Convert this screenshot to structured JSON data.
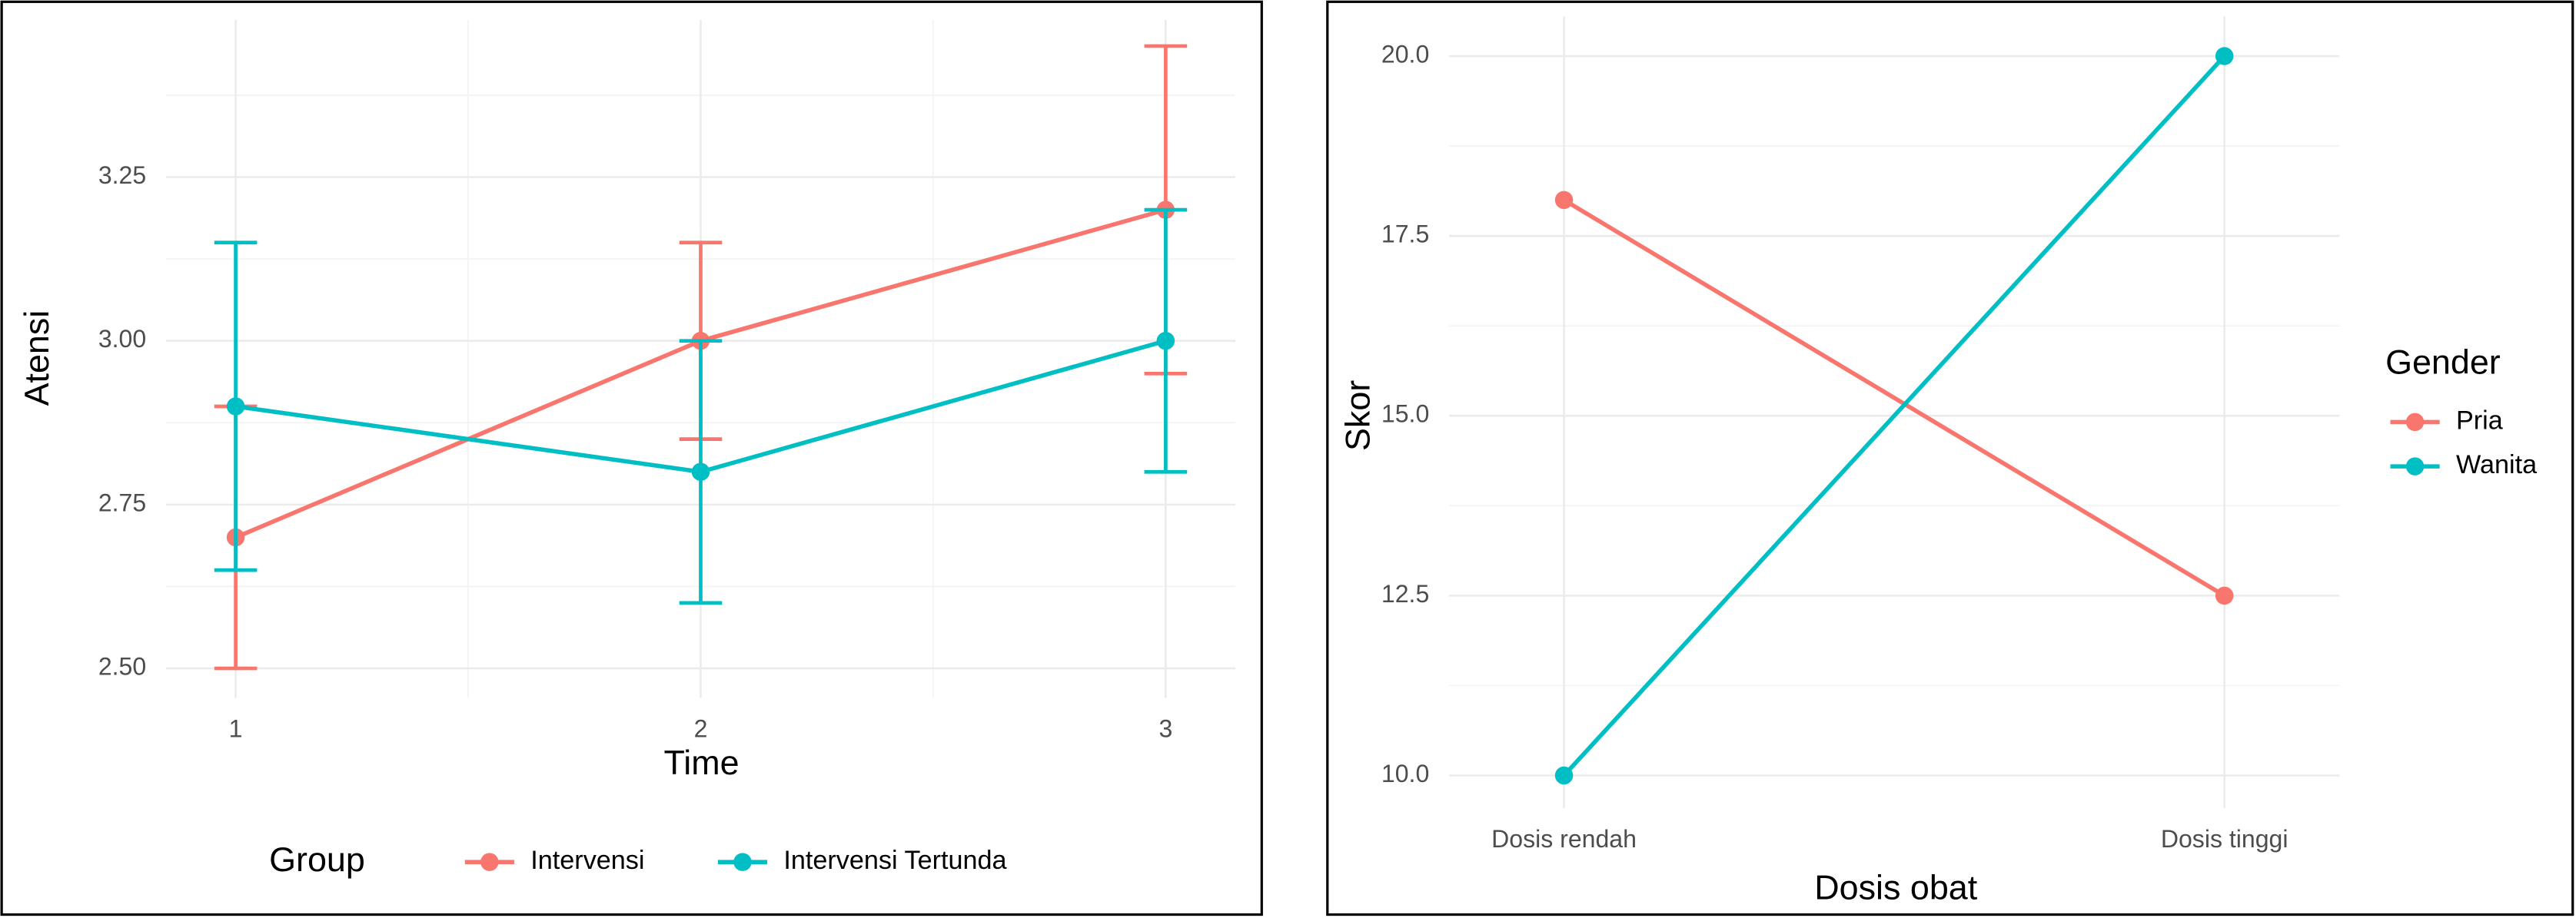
{
  "chart_data": [
    {
      "type": "line",
      "x": [
        1,
        2,
        3
      ],
      "xlim": [
        0.85,
        3.15
      ],
      "xticks": [
        1,
        2,
        3
      ],
      "ylim": [
        2.455,
        3.49
      ],
      "yticks": [
        {
          "value": 2.5,
          "label": "2.50"
        },
        2.75,
        {
          "value": 3.0,
          "label": "3.00"
        },
        3.25
      ],
      "x_label": "Time",
      "y_label": "Atensi",
      "legend_title": "Group",
      "legend_position": "bottom",
      "grid": true,
      "series": [
        {
          "name": "Intervensi",
          "color": "#F8766D",
          "values": [
            2.7,
            3.0,
            3.2
          ],
          "errors": [
            0.2,
            0.15,
            0.25
          ]
        },
        {
          "name": "Intervensi Tertunda",
          "color": "#00BFC4",
          "values": [
            2.9,
            2.8,
            3.0
          ],
          "errors": [
            0.25,
            0.2,
            0.2
          ]
        }
      ]
    },
    {
      "type": "line",
      "categories": [
        "Dosis rendah",
        "Dosis tinggi"
      ],
      "ylim": [
        9.55,
        20.55
      ],
      "yticks": [
        {
          "value": 10,
          "label": "10.0"
        },
        12.5,
        {
          "value": 15,
          "label": "15.0"
        },
        17.5,
        {
          "value": 20,
          "label": "20.0"
        }
      ],
      "x_label": "Dosis obat",
      "y_label": "Skor",
      "legend_title": "Gender",
      "legend_position": "right",
      "grid": true,
      "series": [
        {
          "name": "Pria",
          "color": "#F8766D",
          "values": [
            18,
            12.5
          ]
        },
        {
          "name": "Wanita",
          "color": "#00BFC4",
          "values": [
            10,
            20
          ]
        }
      ]
    }
  ]
}
